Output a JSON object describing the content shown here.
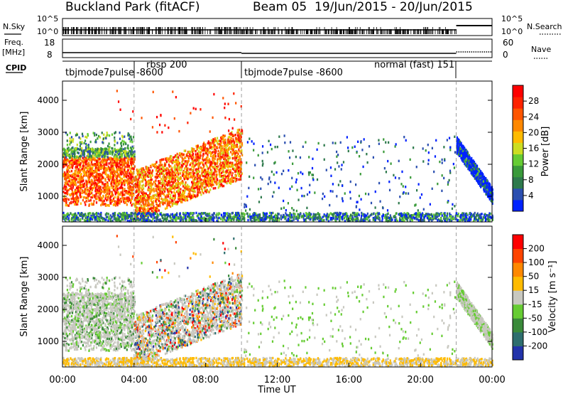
{
  "header": {
    "title": "Buckland Park (fitACF)",
    "beam": "Beam 05",
    "date_range": "19/Jun/2015 - 20/Jun/2015"
  },
  "strip": {
    "nsky_label": "N.Sky",
    "nsearch_label": "N.Search",
    "n_ticks_left": [
      "10^5",
      "10^0"
    ],
    "n_ticks_right": [
      "10^5",
      "10^0"
    ],
    "freq_label_1": "Freq.",
    "freq_label_2": "[MHz]",
    "freq_ticks": [
      "18",
      "8"
    ],
    "nave_label": "Nave",
    "nave_ticks": [
      "60",
      "0"
    ],
    "cpid_label": "CPID",
    "cpid_segments": [
      {
        "label": "tbjmode7pulse",
        "sub": "-8600",
        "start_h": 0.0,
        "end_h": 4.0
      },
      {
        "label": "rbsp 200",
        "sub": "",
        "start_h": 4.0,
        "end_h": 10.0
      },
      {
        "label": "tbjmode7pulse -8600",
        "sub": "",
        "start_h": 10.0,
        "end_h": 22.0
      },
      {
        "label": "normal (fast) 151",
        "sub": "",
        "start_h": 16.8,
        "end_h": 22.0
      }
    ]
  },
  "chart_data": [
    {
      "type": "heatmap",
      "name": "power",
      "ylabel": "Slant Range [km]",
      "xlim_hours": [
        0,
        24
      ],
      "ylim": [
        200,
        4600
      ],
      "yticks": [
        "1000",
        "2000",
        "3000",
        "4000"
      ],
      "colorbar_label": "Power [dB]",
      "colorbar_ticks": [
        "28",
        "24",
        "20",
        "16",
        "12",
        "8",
        "4"
      ],
      "colorbar_range": [
        0,
        32
      ],
      "colors": [
        "#0022ff",
        "#2b4fb0",
        "#2e7a4c",
        "#3a9a3a",
        "#66cc33",
        "#ccdd22",
        "#ffbb00",
        "#ff8800",
        "#ff5500",
        "#ff2200",
        "#ff0000"
      ],
      "vlines_hours": [
        4.0,
        10.0,
        22.0
      ]
    },
    {
      "type": "heatmap",
      "name": "velocity",
      "ylabel": "Slant Range [km]",
      "xlim_hours": [
        0,
        24
      ],
      "ylim": [
        200,
        4600
      ],
      "yticks": [
        "1000",
        "2000",
        "3000",
        "4000"
      ],
      "colorbar_label": "Velocity [m s⁻¹]",
      "colorbar_ticks": [
        "200",
        "100",
        "50",
        "15",
        "-15",
        "-50",
        "-100",
        "-200"
      ],
      "colorbar_range": [
        -250,
        250
      ],
      "colors": [
        "#2233aa",
        "#2e6e6e",
        "#3a8a3a",
        "#66cc33",
        "#c8c8c0",
        "#ffbb00",
        "#ff8800",
        "#ff4400",
        "#ff0000"
      ],
      "xticks": [
        "00:00",
        "04:00",
        "08:00",
        "12:00",
        "16:00",
        "20:00",
        "00:00"
      ],
      "xlabel": "Time UT",
      "vlines_hours": [
        4.0,
        10.0,
        22.0
      ]
    }
  ]
}
